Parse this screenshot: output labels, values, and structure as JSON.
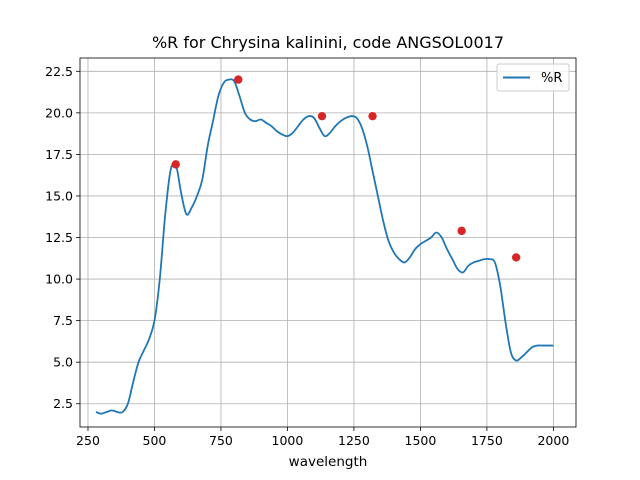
{
  "chart_data": {
    "type": "line",
    "title": "%R for Chrysina kalinini, code ANGSOL0017",
    "xlabel": "wavelength",
    "ylabel": "",
    "xlim": [
      220,
      2085
    ],
    "ylim": [
      1.1,
      23.3
    ],
    "xticks": [
      250,
      500,
      750,
      1000,
      1250,
      1500,
      1750,
      2000
    ],
    "xtick_labels": [
      "250",
      "500",
      "750",
      "1000",
      "1250",
      "1500",
      "1750",
      "2000"
    ],
    "yticks": [
      2.5,
      5.0,
      7.5,
      10.0,
      12.5,
      15.0,
      17.5,
      20.0,
      22.5
    ],
    "ytick_labels": [
      "2.5",
      "5.0",
      "7.5",
      "10.0",
      "12.5",
      "15.0",
      "17.5",
      "20.0",
      "22.5"
    ],
    "grid": true,
    "legend_position": "top-right",
    "series": [
      {
        "name": "%R",
        "color": "#1f77b4",
        "x": [
          280,
          300,
          320,
          340,
          360,
          380,
          400,
          420,
          440,
          460,
          480,
          500,
          520,
          540,
          560,
          580,
          600,
          620,
          640,
          660,
          680,
          700,
          720,
          740,
          760,
          780,
          800,
          820,
          840,
          860,
          880,
          900,
          920,
          940,
          960,
          980,
          1000,
          1020,
          1040,
          1060,
          1080,
          1100,
          1120,
          1140,
          1160,
          1180,
          1200,
          1220,
          1240,
          1260,
          1280,
          1300,
          1320,
          1340,
          1360,
          1380,
          1400,
          1420,
          1440,
          1460,
          1480,
          1500,
          1520,
          1540,
          1560,
          1580,
          1600,
          1620,
          1640,
          1660,
          1680,
          1700,
          1720,
          1740,
          1760,
          1780,
          1800,
          1820,
          1840,
          1860,
          1880,
          1900,
          1920,
          1940,
          1960,
          1980,
          2000
        ],
        "y": [
          2.0,
          1.9,
          2.0,
          2.1,
          2.0,
          2.0,
          2.5,
          3.8,
          5.0,
          5.7,
          6.4,
          7.5,
          10.0,
          13.8,
          16.5,
          16.9,
          15.2,
          13.9,
          14.3,
          15.0,
          16.0,
          18.0,
          19.5,
          21.0,
          21.8,
          22.0,
          21.9,
          21.0,
          20.0,
          19.6,
          19.5,
          19.6,
          19.4,
          19.2,
          18.9,
          18.7,
          18.6,
          18.8,
          19.2,
          19.6,
          19.8,
          19.7,
          19.1,
          18.6,
          18.8,
          19.2,
          19.5,
          19.7,
          19.8,
          19.7,
          19.1,
          18.0,
          16.5,
          15.0,
          13.5,
          12.3,
          11.6,
          11.2,
          11.0,
          11.3,
          11.8,
          12.1,
          12.3,
          12.5,
          12.8,
          12.5,
          11.8,
          11.2,
          10.6,
          10.4,
          10.8,
          11.0,
          11.1,
          11.2,
          11.2,
          11.0,
          9.6,
          7.4,
          5.6,
          5.1,
          5.3,
          5.6,
          5.9,
          6.0,
          6.0,
          6.0,
          6.0
        ]
      }
    ],
    "peaks": {
      "color": "#d62728",
      "x": [
        580,
        815,
        1130,
        1320,
        1655,
        1860
      ],
      "y": [
        16.9,
        22.0,
        19.8,
        19.8,
        12.9,
        11.3
      ]
    }
  }
}
